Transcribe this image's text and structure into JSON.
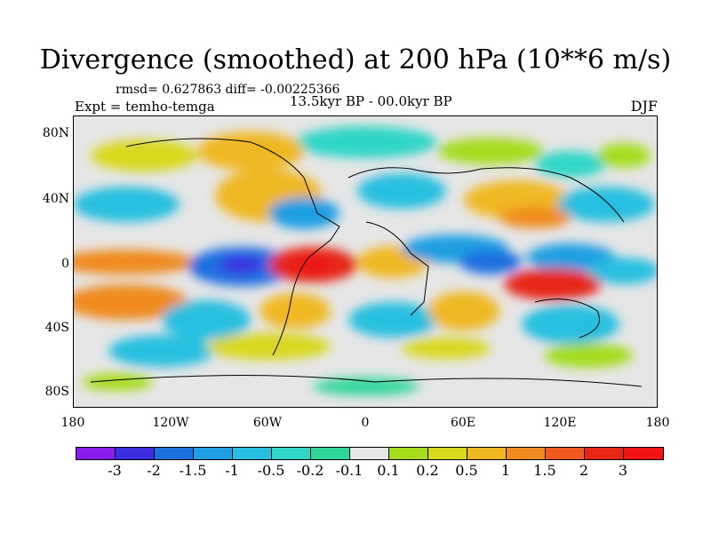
{
  "title": "Divergence (smoothed) at 200 hPa (10**6 m/s)",
  "stats": "rmsd= 0.627863 diff= -0.00225366",
  "experiment": "Expt = temho-temga",
  "period": "13.5kyr BP - 00.0kyr BP",
  "season": "DJF",
  "y_ticks": [
    "80N",
    "40N",
    "0",
    "40S",
    "80S"
  ],
  "x_ticks": [
    "180",
    "120W",
    "60W",
    "0",
    "60E",
    "120E",
    "180"
  ],
  "colorbar": {
    "labels": [
      "-3",
      "-2",
      "-1.5",
      "-1",
      "-0.5",
      "-0.2",
      "-0.1",
      "0.1",
      "0.2",
      "0.5",
      "1",
      "1.5",
      "2",
      "3"
    ],
    "colors": [
      "#8b1cf0",
      "#3a2ee0",
      "#1e6fe0",
      "#1f9fe3",
      "#27bfe0",
      "#2fd6c8",
      "#2fd69a",
      "#e6e6e6",
      "#a5dc1e",
      "#d8d81e",
      "#f0b820",
      "#f08a1e",
      "#f05a1e",
      "#e62814",
      "#f01414"
    ]
  }
}
